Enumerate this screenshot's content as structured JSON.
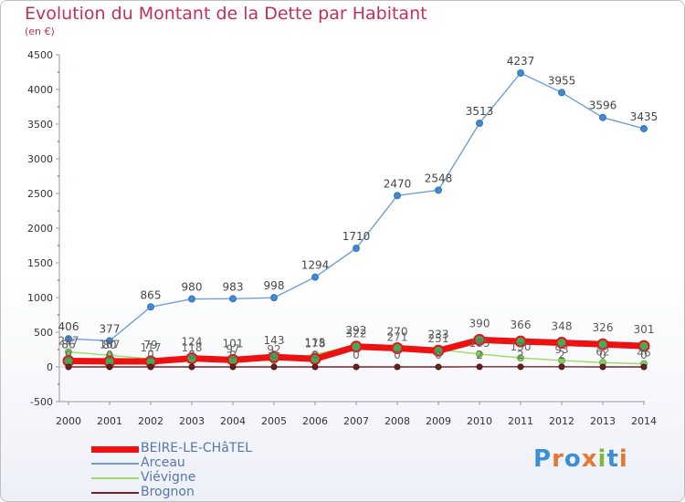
{
  "header": {
    "title": "Evolution du Montant de la Dette par Habitant",
    "unit": "(en €)"
  },
  "brand": {
    "letters": [
      "P",
      "r",
      "o",
      "x",
      "i",
      "t",
      "i"
    ],
    "colors": [
      "#3a8fd6",
      "#e8772e",
      "#3a8fd6",
      "#e8772e",
      "#7cb83a",
      "#3a8fd6",
      "#e8772e"
    ]
  },
  "chart_data": {
    "type": "line",
    "x": [
      "2000",
      "2001",
      "2002",
      "2003",
      "2004",
      "2005",
      "2006",
      "2007",
      "2008",
      "2009",
      "2010",
      "2011",
      "2012",
      "2013",
      "2014"
    ],
    "ylim": [
      -500,
      4500
    ],
    "yticks": [
      "-500",
      "0",
      "500",
      "1000",
      "1500",
      "2000",
      "2500",
      "3000",
      "3500",
      "4000",
      "4500"
    ],
    "legend_position": "bottom-left",
    "series": [
      {
        "name": "BEIRE-LE-CHâTEL",
        "color": "#ee1111",
        "values": [
          86,
          80,
          79,
          124,
          101,
          143,
          115,
          292,
          270,
          233,
          390,
          366,
          348,
          326,
          301
        ],
        "labels": [
          "86",
          "80",
          "79",
          "124",
          "101",
          "143",
          "115",
          "292",
          "270",
          "233",
          "390",
          "366",
          "348",
          "326",
          "301"
        ]
      },
      {
        "name": "Arceau",
        "color": "#6e9fd6",
        "values": [
          406,
          377,
          865,
          980,
          983,
          998,
          1294,
          1710,
          2470,
          2548,
          3513,
          4237,
          3955,
          3596,
          3435
        ],
        "labels": [
          "406",
          "377",
          "865",
          "980",
          "983",
          "998",
          "1294",
          "1710",
          "2470",
          "2548",
          "3513",
          "4237",
          "3955",
          "3596",
          "3435"
        ]
      },
      {
        "name": "Viévigne",
        "color": "#99dd66",
        "values": [
          217,
          167,
          117,
          118,
          97,
          92,
          178,
          322,
          271,
          251,
          185,
          130,
          93,
          62,
          46
        ],
        "labels": [
          "217",
          "167",
          "117",
          "118",
          "97",
          "92",
          "178",
          "322",
          "271",
          "251",
          "185",
          "130",
          "93",
          "62",
          "46"
        ]
      },
      {
        "name": "Brognon",
        "color": "#772222",
        "values": [
          0,
          0,
          0,
          0,
          0,
          0,
          0,
          0,
          0,
          0,
          2,
          2,
          2,
          0,
          0
        ],
        "labels": [
          "0",
          "0",
          "0",
          "0",
          "0",
          "0",
          "0",
          "0",
          "0",
          "0",
          "2",
          "2",
          "2",
          "0",
          "0"
        ]
      }
    ]
  }
}
